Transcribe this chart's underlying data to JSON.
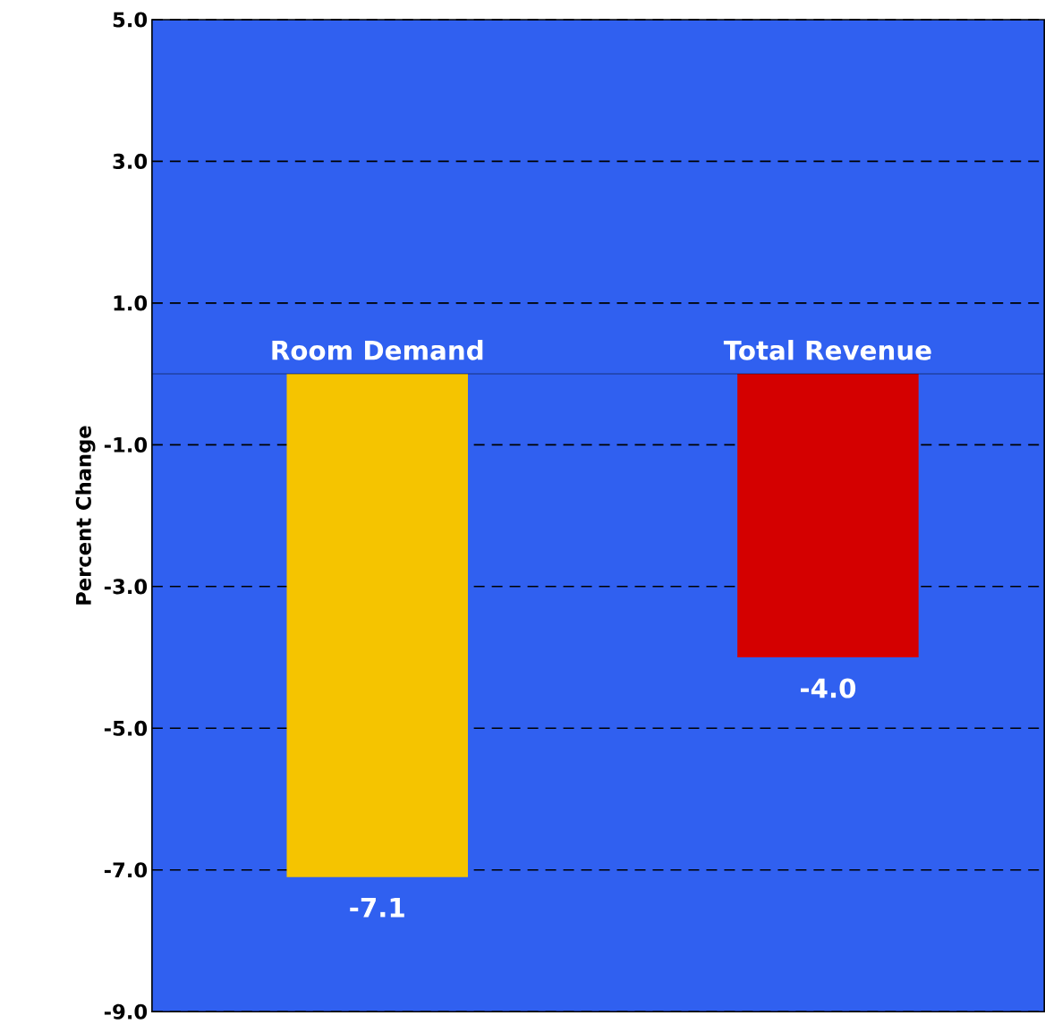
{
  "chart_data": {
    "type": "bar",
    "ylabel": "Percent Change",
    "categories": [
      "Room Demand",
      "Total Revenue"
    ],
    "values": [
      -7.1,
      -4.0
    ],
    "colors": [
      "#f5c400",
      "#d40000"
    ],
    "value_labels": [
      "-7.1",
      "-4.0"
    ],
    "ylim": [
      -9,
      5
    ],
    "yticks": [
      {
        "value": -9,
        "label": "-9.0"
      },
      {
        "value": -7,
        "label": "-7.0"
      },
      {
        "value": -5,
        "label": "-5.0"
      },
      {
        "value": -3,
        "label": "-3.0"
      },
      {
        "value": -1,
        "label": "-1.0"
      },
      {
        "value": 1,
        "label": "1.0"
      },
      {
        "value": 3,
        "label": "3.0"
      },
      {
        "value": 5,
        "label": "5.0"
      }
    ],
    "grid": "y"
  }
}
